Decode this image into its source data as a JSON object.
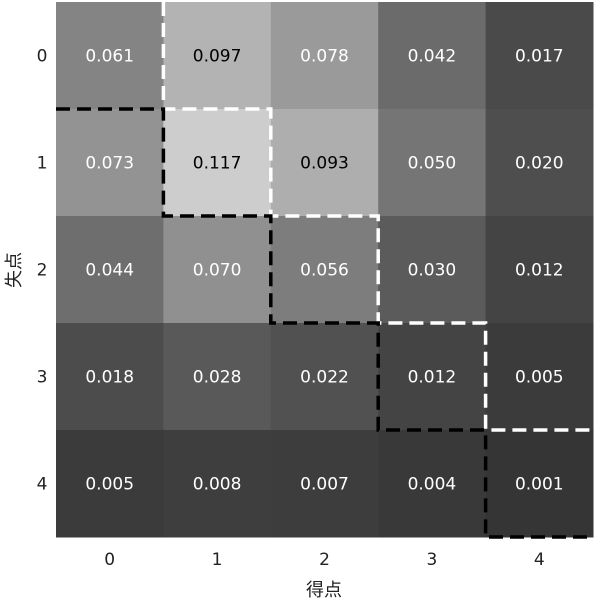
{
  "chart_data": {
    "type": "heatmap",
    "title": "",
    "xlabel": "得点",
    "ylabel": "失点",
    "x_categories": [
      "0",
      "1",
      "2",
      "3",
      "4"
    ],
    "y_categories": [
      "0",
      "1",
      "2",
      "3",
      "4"
    ],
    "values": [
      [
        0.061,
        0.097,
        0.078,
        0.042,
        0.017
      ],
      [
        0.073,
        0.117,
        0.093,
        0.05,
        0.02
      ],
      [
        0.044,
        0.07,
        0.056,
        0.03,
        0.012
      ],
      [
        0.018,
        0.028,
        0.022,
        0.012,
        0.005
      ],
      [
        0.005,
        0.008,
        0.007,
        0.004,
        0.001
      ]
    ],
    "labels": [
      [
        "0.061",
        "0.097",
        "0.078",
        "0.042",
        "0.017"
      ],
      [
        "0.073",
        "0.117",
        "0.093",
        "0.050",
        "0.020"
      ],
      [
        "0.044",
        "0.070",
        "0.056",
        "0.030",
        "0.012"
      ],
      [
        "0.018",
        "0.028",
        "0.022",
        "0.012",
        "0.005"
      ],
      [
        "0.005",
        "0.008",
        "0.007",
        "0.004",
        "0.001"
      ]
    ],
    "colormap": "gray",
    "color_range": [
      0,
      0.117
    ],
    "dark_text_color": "#000000",
    "light_text_color": "#ffffff",
    "dashed_line_colors": {
      "upper": "#ffffff",
      "lower": "#000000"
    }
  }
}
